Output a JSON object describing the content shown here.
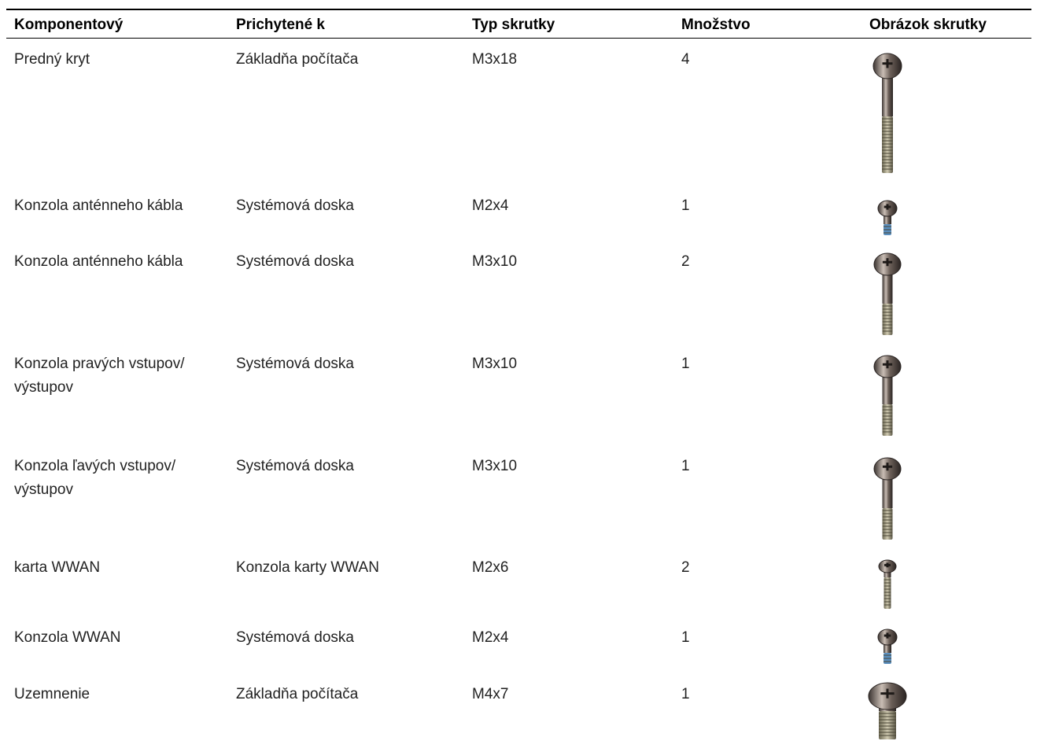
{
  "table": {
    "header": [
      "Komponentový",
      "Prichytené k",
      "Typ skrutky",
      "Množstvo",
      "Obrázok skrutky"
    ],
    "rows": [
      [
        "Predný kryt",
        "Základňa počítača",
        "M3x18",
        "4"
      ],
      [
        "Konzola anténneho kábla",
        "Systémová doska",
        "M2x4",
        "1"
      ],
      [
        "Konzola anténneho kábla",
        "Systémová doska",
        "M3x10",
        "2"
      ],
      [
        "Konzola pravých vstupov/\nvýstupov",
        "Systémová doska",
        "M3x10",
        "1"
      ],
      [
        "Konzola ľavých vstupov/\nvýstupov",
        "Systémová doska",
        "M3x10",
        "1"
      ],
      [
        "karta WWAN",
        "Konzola karty WWAN",
        "M2x6",
        "2"
      ],
      [
        "Konzola WWAN",
        "Systémová doska",
        "M2x4",
        "1"
      ],
      [
        "Uzemnenie",
        "Základňa počítača",
        "M4x7",
        "1"
      ]
    ]
  }
}
